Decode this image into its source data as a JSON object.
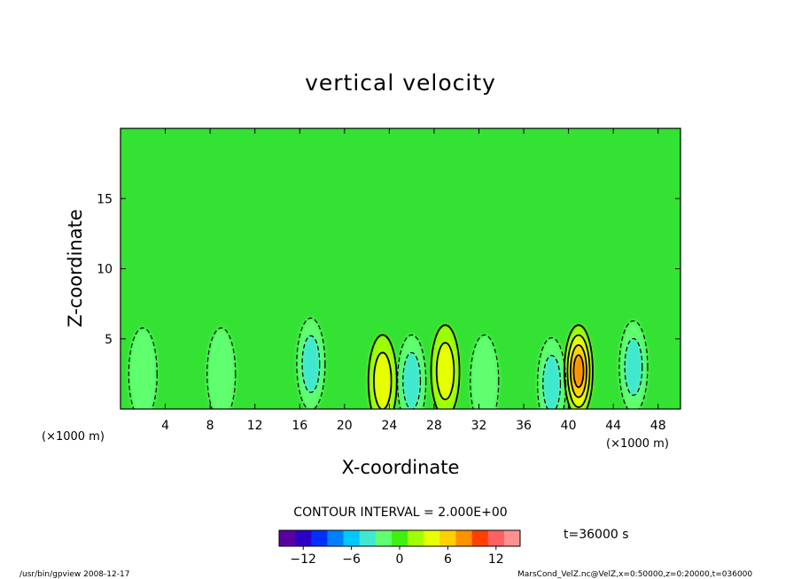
{
  "chart_data": {
    "type": "heatmap",
    "title": "vertical velocity",
    "xlabel": "X-coordinate",
    "ylabel": "Z-coordinate",
    "x_unit_left": "(×1000 m)",
    "x_unit_right": "(×1000 m)",
    "xlim": [
      0,
      50
    ],
    "ylim": [
      0,
      20
    ],
    "x_ticks": [
      4,
      8,
      12,
      16,
      20,
      24,
      28,
      32,
      36,
      40,
      44,
      48
    ],
    "y_ticks": [
      5,
      10,
      15
    ],
    "contour_interval_label": "CONTOUR INTERVAL = 2.000E+00",
    "time_label": "t=36000 s",
    "colorbar": {
      "min": -15,
      "max": 15,
      "ticks": [
        -12,
        -6,
        0,
        6,
        12
      ],
      "colors": [
        "#5a00a0",
        "#2a00c8",
        "#0030ff",
        "#0080ff",
        "#00c8ff",
        "#40e8d0",
        "#60ff70",
        "#40f010",
        "#a0ff00",
        "#e8ff00",
        "#ffd000",
        "#ff9000",
        "#ff4000",
        "#ff6060",
        "#ff9090"
      ]
    },
    "features": [
      {
        "x": 23.4,
        "z": 2.0,
        "w": 4,
        "kind": "updraft"
      },
      {
        "x": 29.0,
        "z": 2.7,
        "w": 4,
        "kind": "updraft"
      },
      {
        "x": 40.9,
        "z": 2.7,
        "w": 8,
        "kind": "updraft"
      },
      {
        "x": 17.0,
        "z": 3.2,
        "w": -4,
        "kind": "downdraft"
      },
      {
        "x": 26.0,
        "z": 2.0,
        "w": -4,
        "kind": "downdraft"
      },
      {
        "x": 38.5,
        "z": 1.8,
        "w": -4,
        "kind": "downdraft"
      },
      {
        "x": 45.8,
        "z": 3.0,
        "w": -4,
        "kind": "downdraft"
      },
      {
        "x": 2.0,
        "z": 2.5,
        "w": -2,
        "kind": "downdraft"
      },
      {
        "x": 9.0,
        "z": 2.5,
        "w": -2,
        "kind": "downdraft"
      },
      {
        "x": 32.5,
        "z": 2.0,
        "w": -2,
        "kind": "downdraft"
      }
    ]
  },
  "footer": {
    "left": "/usr/bin/gpview   2008-12-17",
    "right": "MarsCond_VelZ.nc@VelZ,x=0:50000,z=0:20000,t=036000"
  }
}
